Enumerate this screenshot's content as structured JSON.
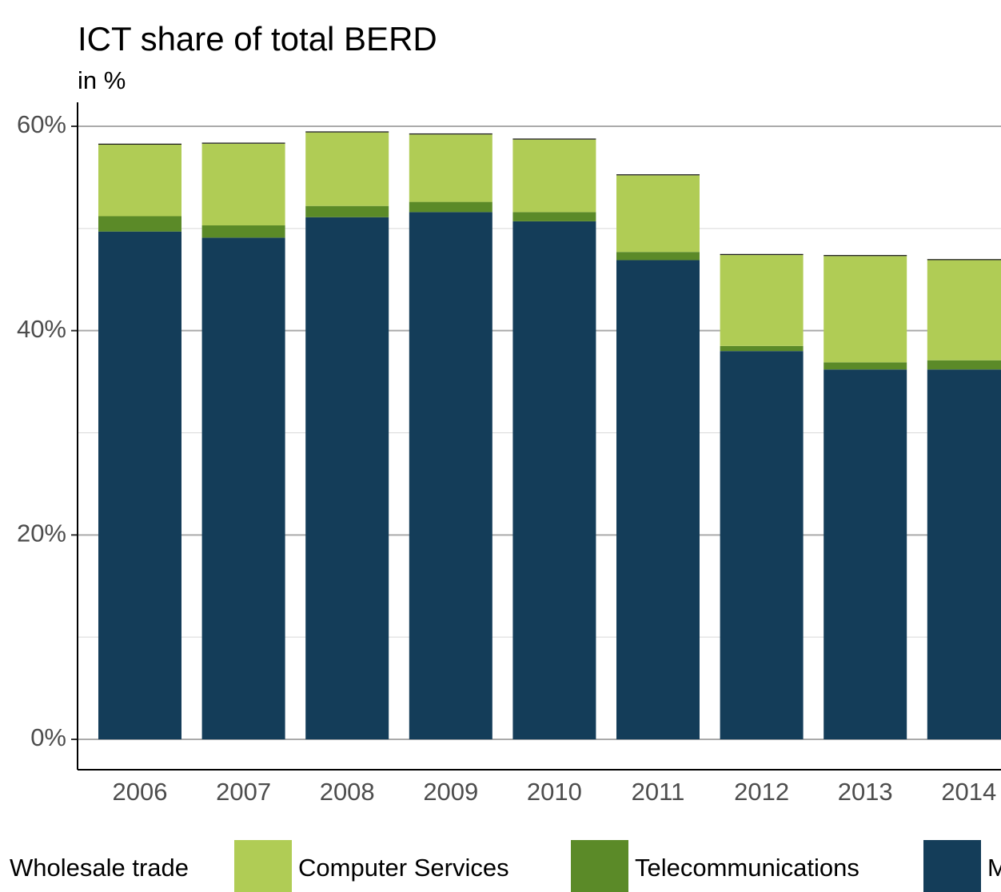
{
  "chart_data": {
    "type": "stacked_bar",
    "title": "ICT share of total BERD",
    "subtitle": "in %",
    "categories": [
      "2006",
      "2007",
      "2008",
      "2009",
      "2010",
      "2011",
      "2012",
      "2013",
      "2014"
    ],
    "series": [
      {
        "name": "M",
        "color": "#143d59",
        "values": [
          49.7,
          49.1,
          51.1,
          51.6,
          50.7,
          46.9,
          38.0,
          36.2,
          36.2
        ]
      },
      {
        "name": "Telecommunications",
        "color": "#5b8a28",
        "values": [
          1.5,
          1.2,
          1.1,
          1.0,
          0.9,
          0.8,
          0.5,
          0.7,
          0.9
        ]
      },
      {
        "name": "Computer Services",
        "color": "#b0cc55",
        "values": [
          7.0,
          8.0,
          7.2,
          6.6,
          7.1,
          7.5,
          8.9,
          10.4,
          9.8
        ]
      },
      {
        "name": "Wholesale trade",
        "color": "#1a1a1a",
        "values": [
          0.1,
          0.1,
          0.1,
          0.1,
          0.1,
          0.1,
          0.1,
          0.1,
          0.1
        ]
      }
    ],
    "ylim": [
      0,
      60
    ],
    "yticks": [
      {
        "value": 0,
        "label": "0%"
      },
      {
        "value": 20,
        "label": "20%"
      },
      {
        "value": 40,
        "label": "40%"
      },
      {
        "value": 60,
        "label": "60%"
      }
    ],
    "grid": true
  }
}
